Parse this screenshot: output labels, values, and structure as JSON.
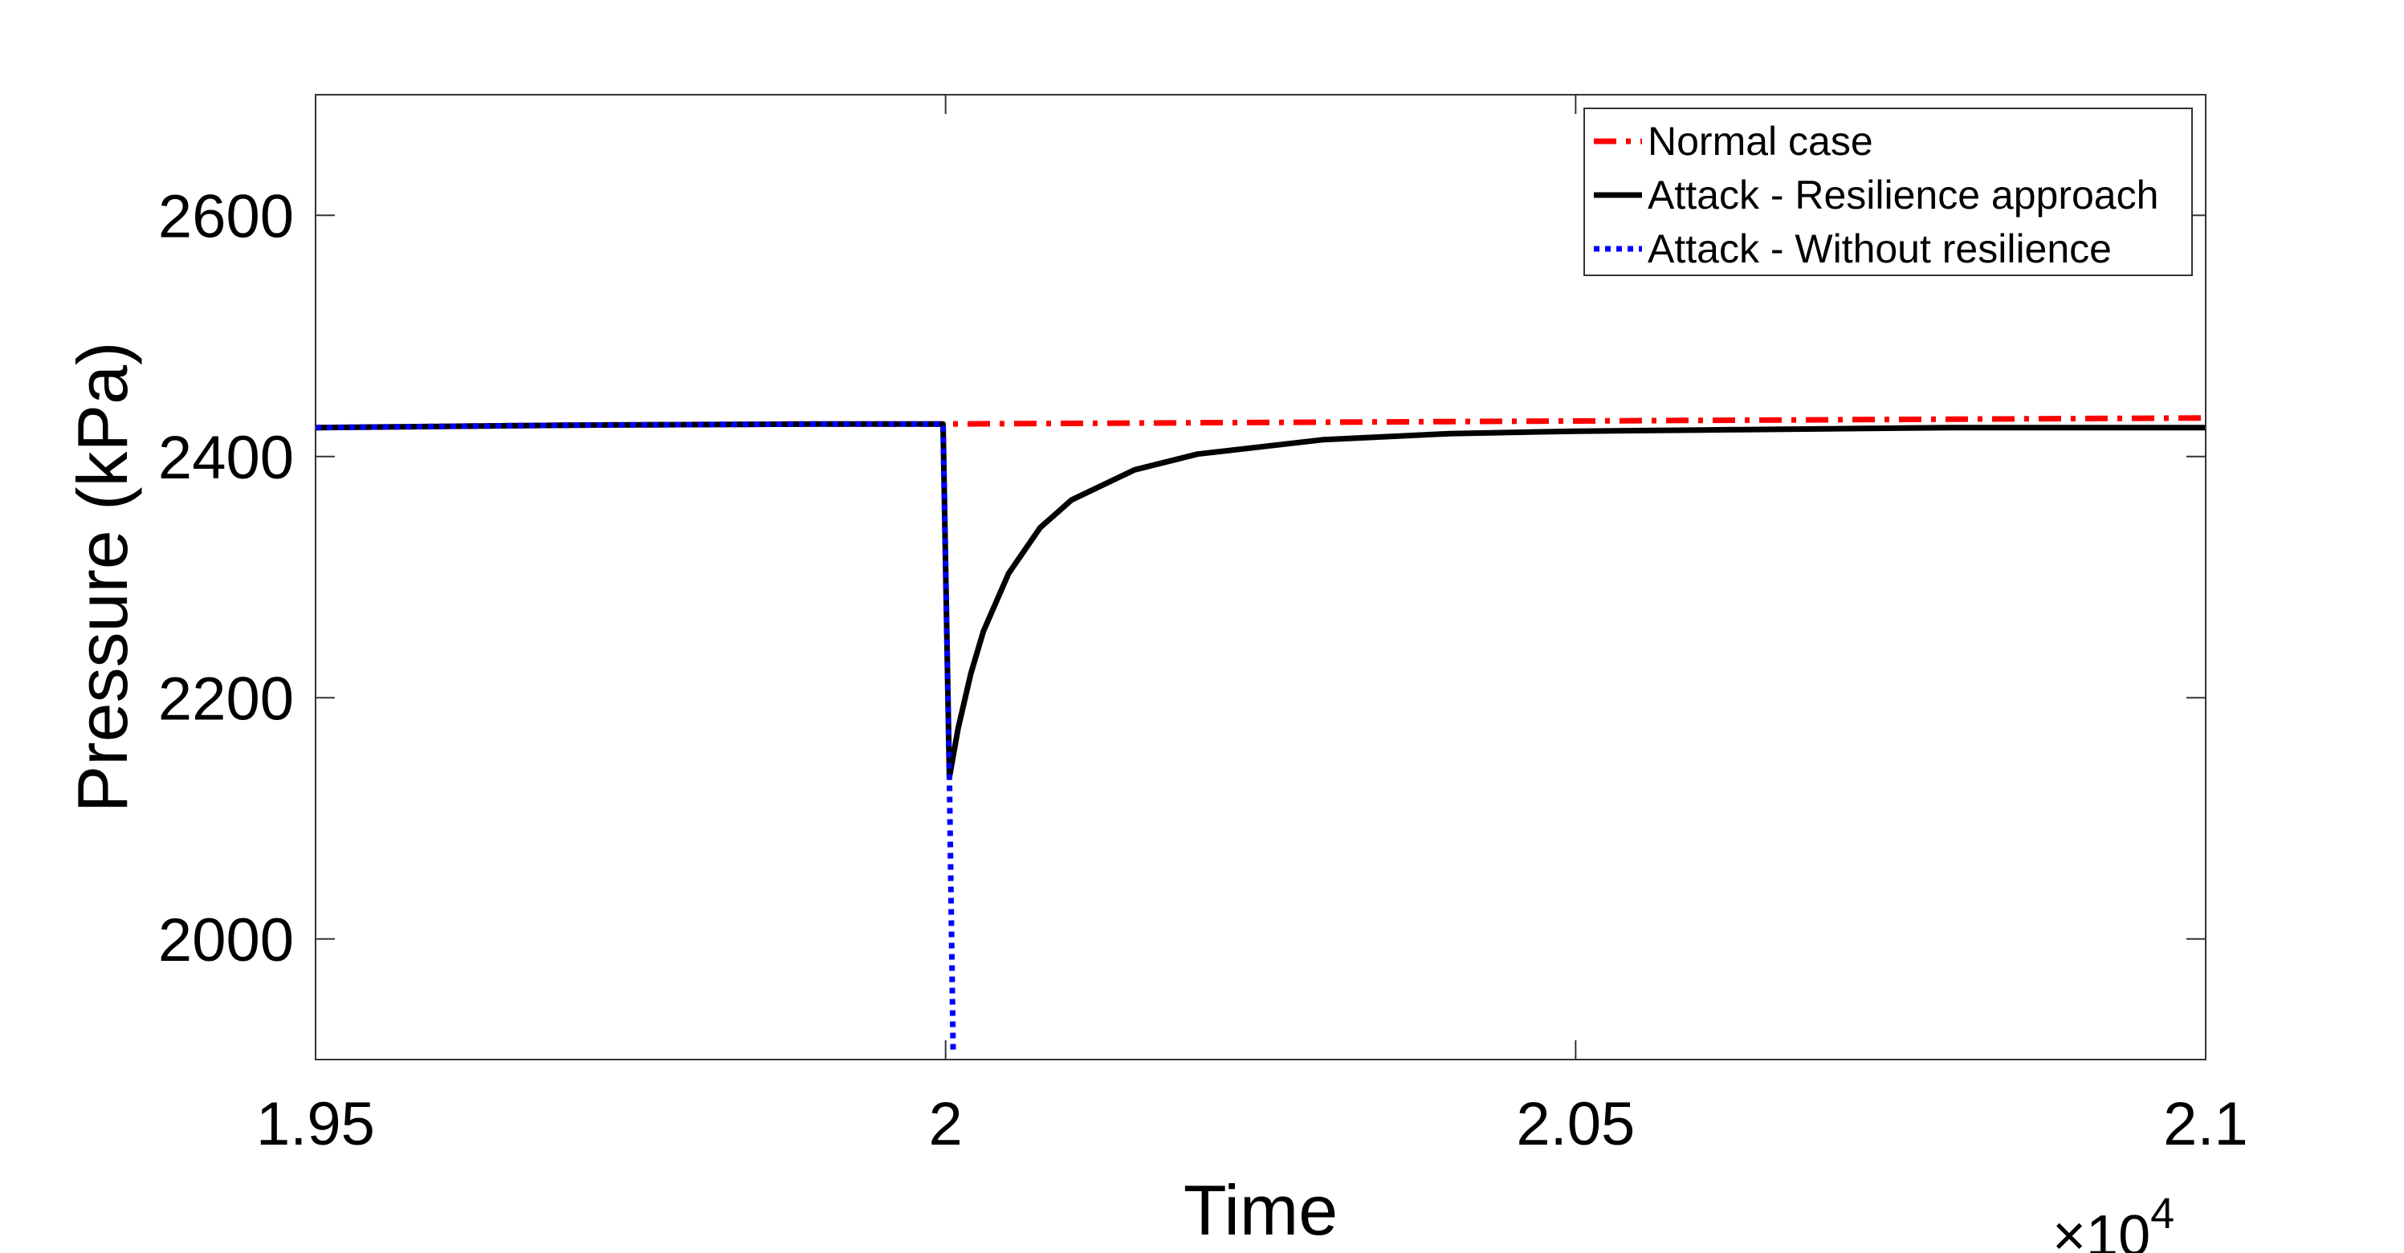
{
  "chart_data": {
    "type": "line",
    "title": "",
    "xlabel": "Time",
    "ylabel": "Pressure (kPa)",
    "x_exponent_label": {
      "base": "×10",
      "exp": "4"
    },
    "xlim": [
      1.95,
      2.1
    ],
    "ylim": [
      1900,
      2700
    ],
    "x_scale_factor": 10000,
    "x_ticks": [
      1.95,
      2,
      2.05,
      2.1
    ],
    "x_tick_labels": [
      "1.95",
      "2",
      "2.05",
      "2.1"
    ],
    "y_ticks": [
      2000,
      2200,
      2400,
      2600
    ],
    "y_tick_labels": [
      "2000",
      "2200",
      "2400",
      "2600"
    ],
    "grid": false,
    "legend_position": "top-right",
    "series": [
      {
        "name": "Normal case",
        "color": "#ff0000",
        "style": "dash-dot",
        "x": [
          1.95,
          1.97,
          1.99,
          2.0,
          2.02,
          2.04,
          2.06,
          2.08,
          2.1
        ],
        "y": [
          2424,
          2426,
          2427,
          2427,
          2428,
          2429,
          2430,
          2431,
          2432
        ]
      },
      {
        "name": "Attack - Resilience approach",
        "color": "#000000",
        "style": "solid",
        "x": [
          1.95,
          1.97,
          1.99,
          1.9998,
          2.0003,
          2.001,
          2.002,
          2.003,
          2.005,
          2.0075,
          2.01,
          2.015,
          2.02,
          2.03,
          2.04,
          2.05,
          2.06,
          2.07,
          2.08,
          2.09,
          2.1
        ],
        "y": [
          2424,
          2426,
          2427,
          2427,
          2134,
          2175,
          2220,
          2255,
          2303,
          2341,
          2364,
          2389,
          2402,
          2414,
          2419,
          2421,
          2422,
          2423,
          2424,
          2424,
          2424
        ]
      },
      {
        "name": "Attack - Without resilience",
        "color": "#0000ff",
        "style": "dotted",
        "x": [
          1.95,
          1.97,
          1.99,
          1.9998,
          2.0003,
          2.0006
        ],
        "y": [
          2424,
          2426,
          2427,
          2427,
          2134,
          1905
        ]
      }
    ]
  }
}
